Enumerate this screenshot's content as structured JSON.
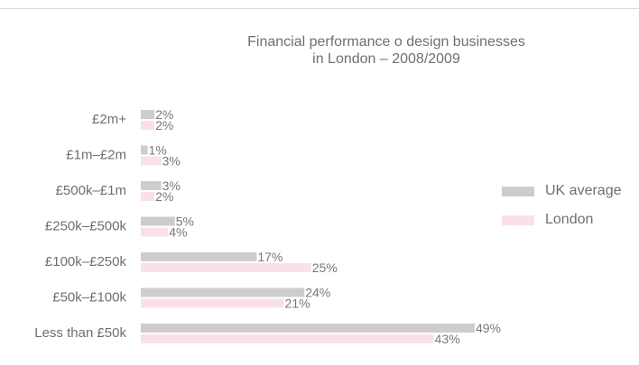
{
  "chart_data": {
    "type": "bar",
    "orientation": "horizontal",
    "title": "Financial performance o design businesses in London – 2008/2009",
    "title_lines": [
      "Financial performance o design businesses",
      "in London – 2008/2009"
    ],
    "xlabel": "",
    "ylabel": "",
    "xlim": [
      0,
      50
    ],
    "grid": false,
    "legend_position": "right",
    "categories": [
      "£2m+",
      "£1m–£2m",
      "£500k–£1m",
      "£250k–£500k",
      "£100k–£250k",
      "£50k–£100k",
      "Less than £50k"
    ],
    "series": [
      {
        "name": "UK average",
        "color": "#cdcdcd",
        "values": [
          2,
          1,
          3,
          5,
          17,
          24,
          49
        ],
        "labels": [
          "2%",
          "1%",
          "3%",
          "5%",
          "17%",
          "24%",
          "49%"
        ]
      },
      {
        "name": "London",
        "color": "#fbe0e8",
        "values": [
          2,
          3,
          2,
          4,
          25,
          21,
          43
        ],
        "labels": [
          "2%",
          "3%",
          "2%",
          "4%",
          "25%",
          "21%",
          "43%"
        ]
      }
    ]
  }
}
